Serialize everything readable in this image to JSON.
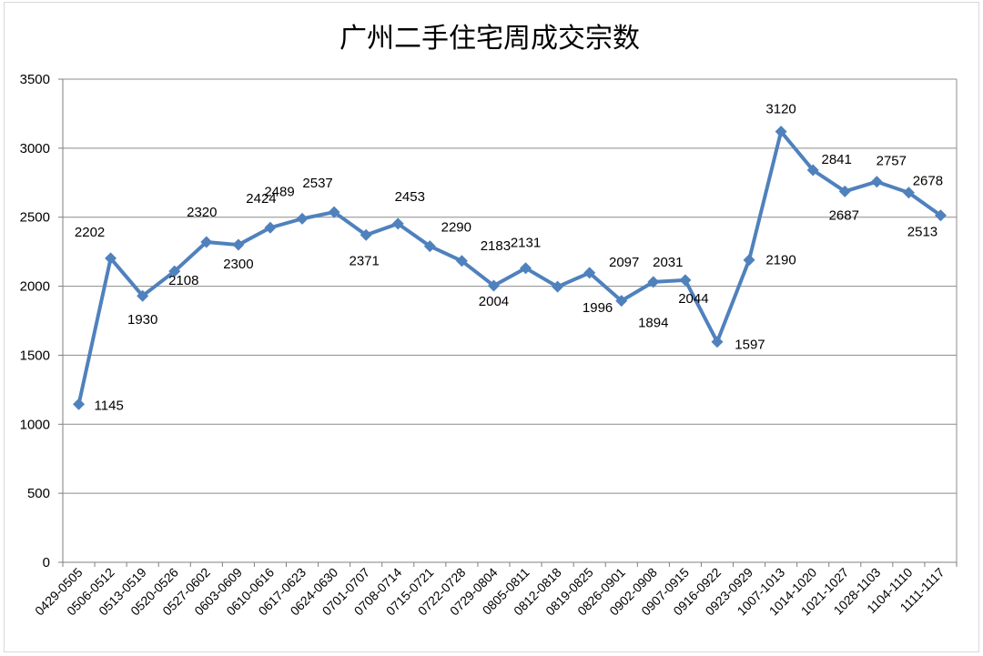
{
  "chart_data": {
    "type": "line",
    "title": "广州二手住宅周成交宗数",
    "xlabel": "",
    "ylabel": "",
    "ylim": [
      0,
      3500
    ],
    "yticks": [
      0,
      500,
      1000,
      1500,
      2000,
      2500,
      3000,
      3500
    ],
    "grid": true,
    "legend": "none",
    "line_color": "#4F81BD",
    "categories": [
      "0429-0505",
      "0506-0512",
      "0513-0519",
      "0520-0526",
      "0527-0602",
      "0603-0609",
      "0610-0616",
      "0617-0623",
      "0624-0630",
      "0701-0707",
      "0708-0714",
      "0715-0721",
      "0722-0728",
      "0729-0804",
      "0805-0811",
      "0812-0818",
      "0819-0825",
      "0826-0901",
      "0902-0908",
      "0907-0915",
      "0916-0922",
      "0923-0929",
      "1007-1013",
      "1014-1020",
      "1021-1027",
      "1028-1103",
      "1104-1110",
      "1111-1117"
    ],
    "series": [
      {
        "values": [
          1145,
          2202,
          1930,
          2108,
          2320,
          2300,
          2424,
          2489,
          2537,
          2371,
          2453,
          2290,
          2183,
          2004,
          2131,
          1996,
          2097,
          1894,
          2031,
          2044,
          1597,
          2190,
          3120,
          2841,
          2687,
          2757,
          2678,
          2513
        ]
      }
    ]
  }
}
